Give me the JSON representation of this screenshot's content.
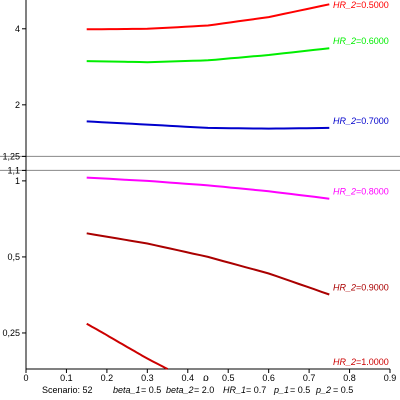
{
  "chart_data": {
    "type": "line",
    "xlabel": "ρ",
    "x_ticks": [
      "0",
      "0,1",
      "0,2",
      "0,3",
      "0,4",
      "0,5",
      "0,6",
      "0,7",
      "0,8",
      "0,9"
    ],
    "xlim": [
      0,
      0.9
    ],
    "y_scale": "log",
    "ylim": [
      0.18,
      5.2
    ],
    "y_ticks": [
      {
        "value": 4,
        "label": "4"
      },
      {
        "value": 2,
        "label": "2"
      },
      {
        "value": 1.25,
        "label": "1,25"
      },
      {
        "value": 1.1,
        "label": "1,1"
      },
      {
        "value": 1,
        "label": "1"
      },
      {
        "value": 0.5,
        "label": "0,5"
      },
      {
        "value": 0.25,
        "label": "0,25"
      }
    ],
    "reference_lines": [
      1.25,
      1.1
    ],
    "series": [
      {
        "name": "HR_2",
        "value": "=0.5000",
        "color": "#ff0000",
        "x": [
          0.15,
          0.3,
          0.45,
          0.6,
          0.75
        ],
        "y": [
          3.98,
          4.0,
          4.12,
          4.45,
          5.0
        ]
      },
      {
        "name": "HR_2",
        "value": "=0.6000",
        "color": "#00ee00",
        "x": [
          0.15,
          0.3,
          0.45,
          0.6,
          0.75
        ],
        "y": [
          2.98,
          2.95,
          3.0,
          3.15,
          3.35
        ]
      },
      {
        "name": "HR_2",
        "value": "=0.7000",
        "color": "#0000cc",
        "x": [
          0.15,
          0.3,
          0.45,
          0.6,
          0.75
        ],
        "y": [
          1.72,
          1.67,
          1.62,
          1.61,
          1.62
        ]
      },
      {
        "name": "HR_2",
        "value": "=0.8000",
        "color": "#ff00ff",
        "x": [
          0.15,
          0.3,
          0.45,
          0.6,
          0.75
        ],
        "y": [
          1.03,
          1.0,
          0.96,
          0.91,
          0.85
        ]
      },
      {
        "name": "HR_2",
        "value": "=0.9000",
        "color": "#aa0000",
        "x": [
          0.15,
          0.3,
          0.45,
          0.6,
          0.75
        ],
        "y": [
          0.62,
          0.565,
          0.5,
          0.43,
          0.355
        ]
      },
      {
        "name": "HR_2",
        "value": "=1.0000",
        "color": "#cc0000",
        "x": [
          0.15,
          0.2,
          0.25,
          0.3,
          0.35
        ],
        "y": [
          0.272,
          0.245,
          0.22,
          0.198,
          0.18
        ]
      }
    ]
  },
  "footer": {
    "scenario": "Scenario: 52",
    "beta_1_name": "beta_1",
    "beta_1_value": "= 0.5",
    "beta_2_name": "beta_2",
    "beta_2_value": "= 2.0",
    "hr_1_name": "HR_1",
    "hr_1_value": "= 0.7",
    "p_1_name": "p_1",
    "p_1_value": "= 0.5",
    "p_2_name": "p_2",
    "p_2_value": "= 0.5"
  }
}
